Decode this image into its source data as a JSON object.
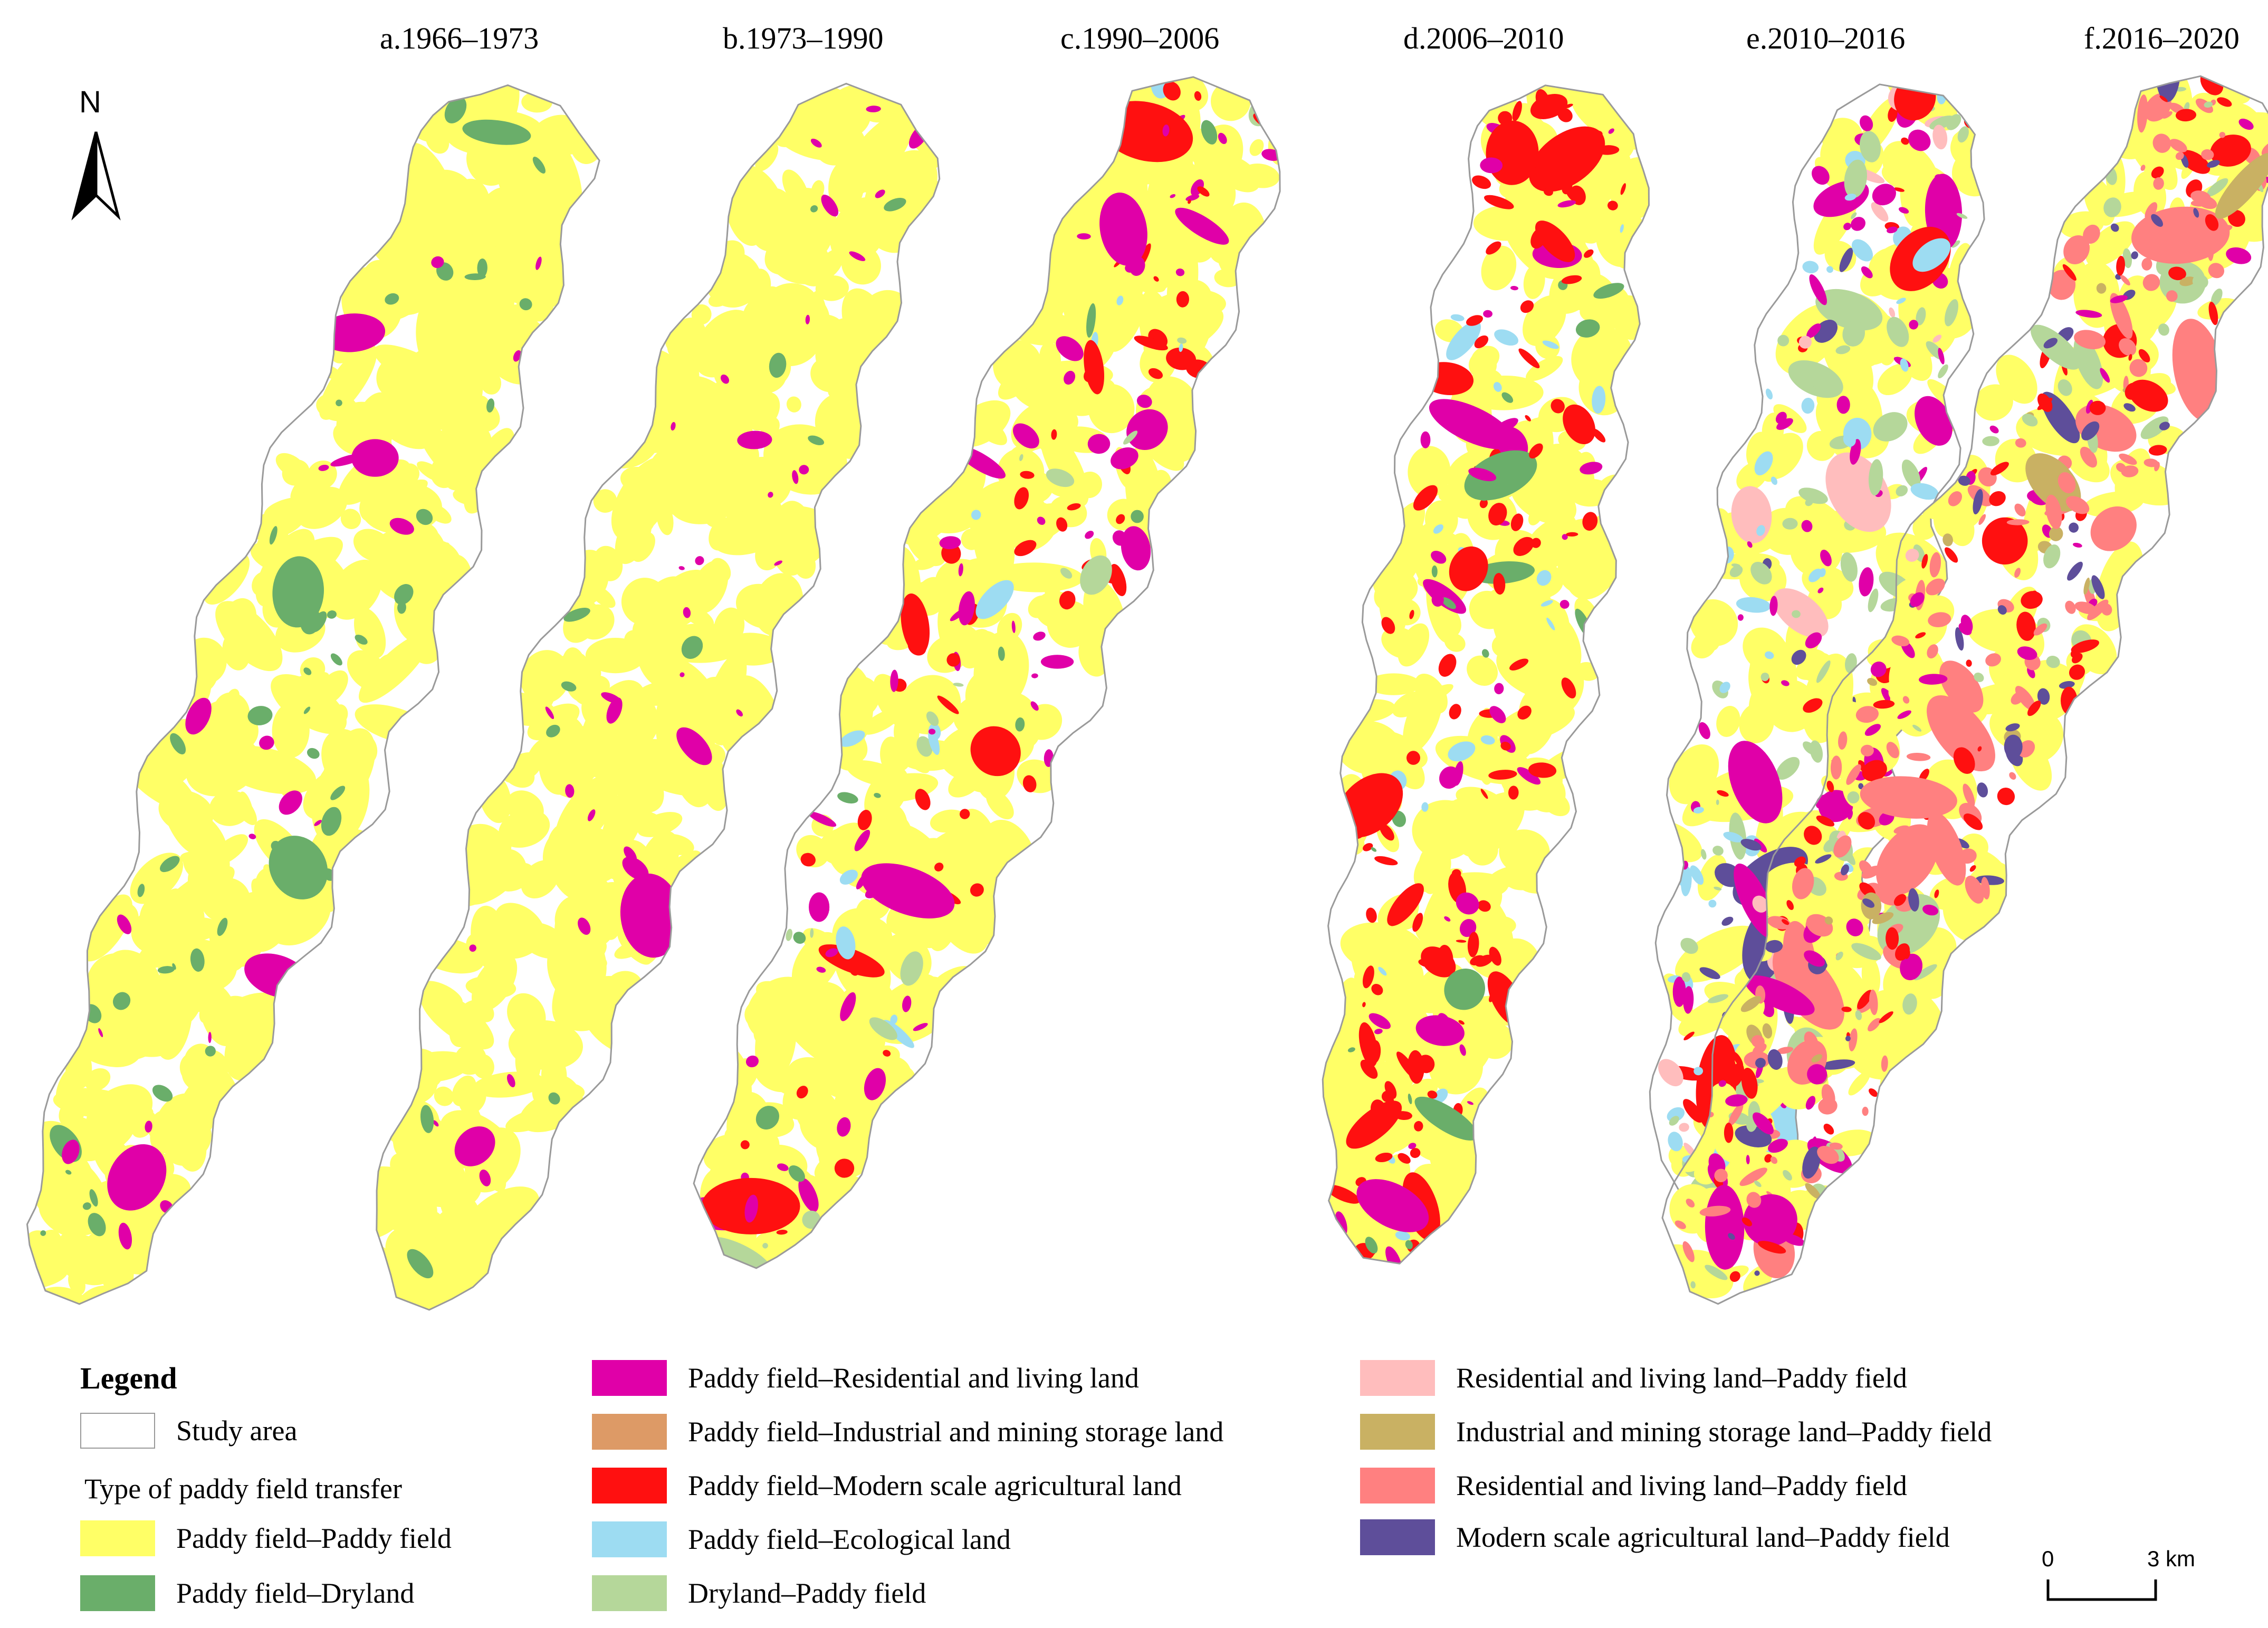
{
  "panels": [
    {
      "label": "a.1966–1973"
    },
    {
      "label": "b.1973–1990"
    },
    {
      "label": "c.1990–2006"
    },
    {
      "label": "d.2006–2010"
    },
    {
      "label": "e.2010–2016"
    },
    {
      "label": "f.2016–2020"
    }
  ],
  "north_arrow": {
    "label": "N"
  },
  "legend": {
    "title": "Legend",
    "study_area": {
      "label": "Study area",
      "color": "#ffffff"
    },
    "subtitle": "Type of paddy field transfer",
    "items": [
      {
        "label": "Paddy field–Paddy field",
        "color": "#ffff66"
      },
      {
        "label": "Paddy field–Dryland",
        "color": "#6aae6a"
      },
      {
        "label": "Paddy  field–Residential and living land",
        "color": "#e000a8"
      },
      {
        "label": "Paddy  field–Industrial and mining storage land",
        "color": "#dd9a66"
      },
      {
        "label": "Paddy  field–Modern scale agricultural land",
        "color": "#ff1010"
      },
      {
        "label": "Paddy field–Ecological land",
        "color": "#9ddcf2"
      },
      {
        "label": "Dryland–Paddy field",
        "color": "#b5d79a"
      },
      {
        "label": "Residential and living land–Paddy field",
        "color": "#ffbdbd"
      },
      {
        "label": "Industrial and mining storage land–Paddy field",
        "color": "#c9b163"
      },
      {
        "label": "Residential and living land–Paddy field",
        "color": "#ff8080"
      },
      {
        "label": "Modern scale agricultural land–Paddy field",
        "color": "#5e4e9a"
      }
    ]
  },
  "scale_bar": {
    "start_label": "0",
    "end_label": "3 km"
  }
}
